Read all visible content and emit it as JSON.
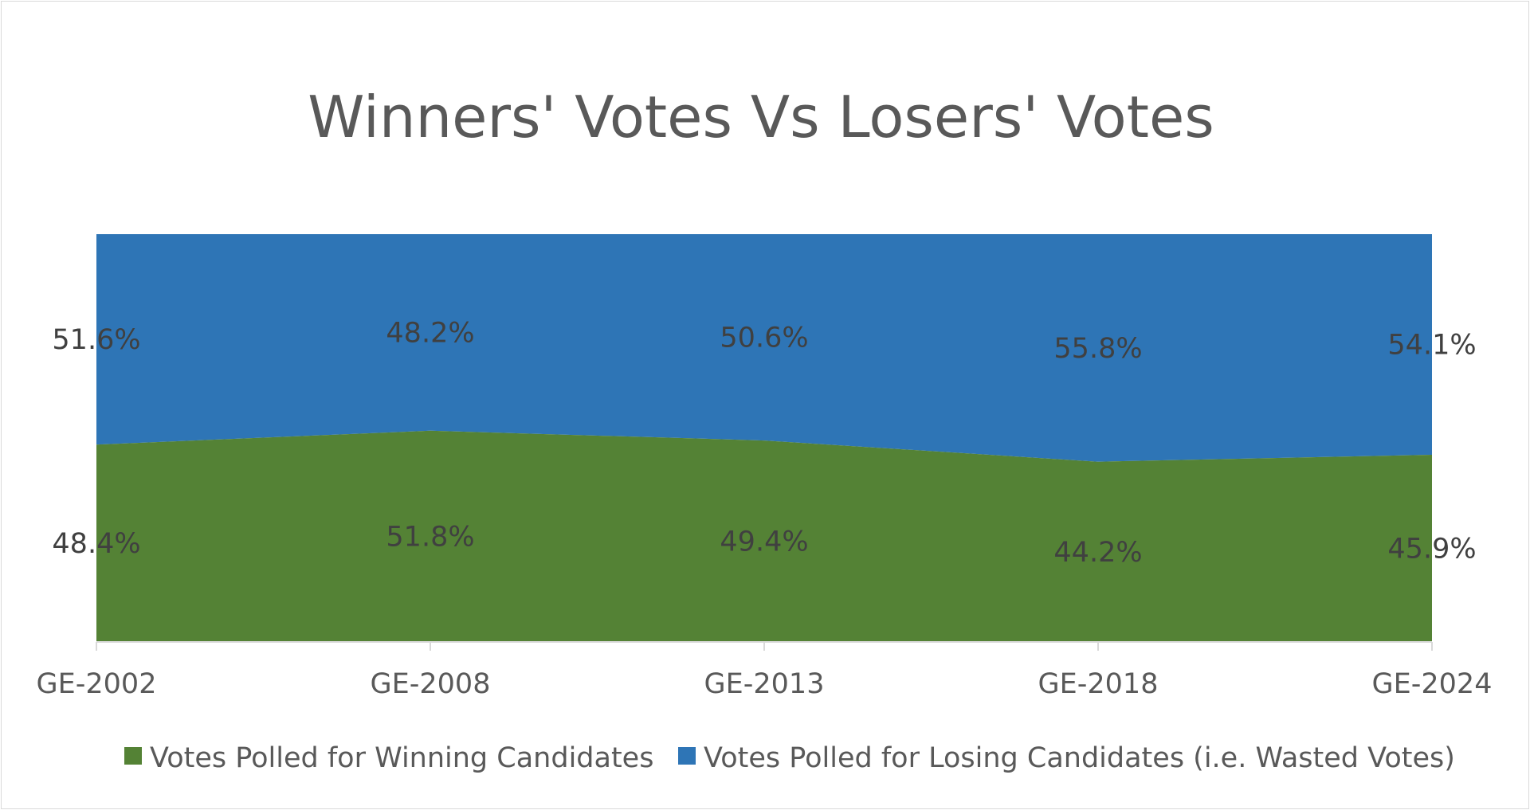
{
  "chart_data": {
    "type": "area",
    "stacked": true,
    "percent_stacked": true,
    "title": "Winners' Votes Vs Losers' Votes",
    "categories": [
      "GE-2002",
      "GE-2008",
      "GE-2013",
      "GE-2018",
      "GE-2024"
    ],
    "ylim": [
      0,
      100
    ],
    "grid": false,
    "legend_position": "bottom",
    "series": [
      {
        "name": "Votes Polled for Winning Candidates",
        "color": "#548235",
        "values": [
          48.4,
          51.8,
          49.4,
          44.2,
          45.9
        ],
        "labels": [
          "48.4%",
          "51.8%",
          "49.4%",
          "44.2%",
          "45.9%"
        ]
      },
      {
        "name": "Votes Polled for Losing Candidates (i.e. Wasted Votes)",
        "color": "#2E75B6",
        "values": [
          51.6,
          48.2,
          50.6,
          55.8,
          54.1
        ],
        "labels": [
          "51.6%",
          "48.2%",
          "50.6%",
          "55.8%",
          "54.1%"
        ]
      }
    ]
  }
}
